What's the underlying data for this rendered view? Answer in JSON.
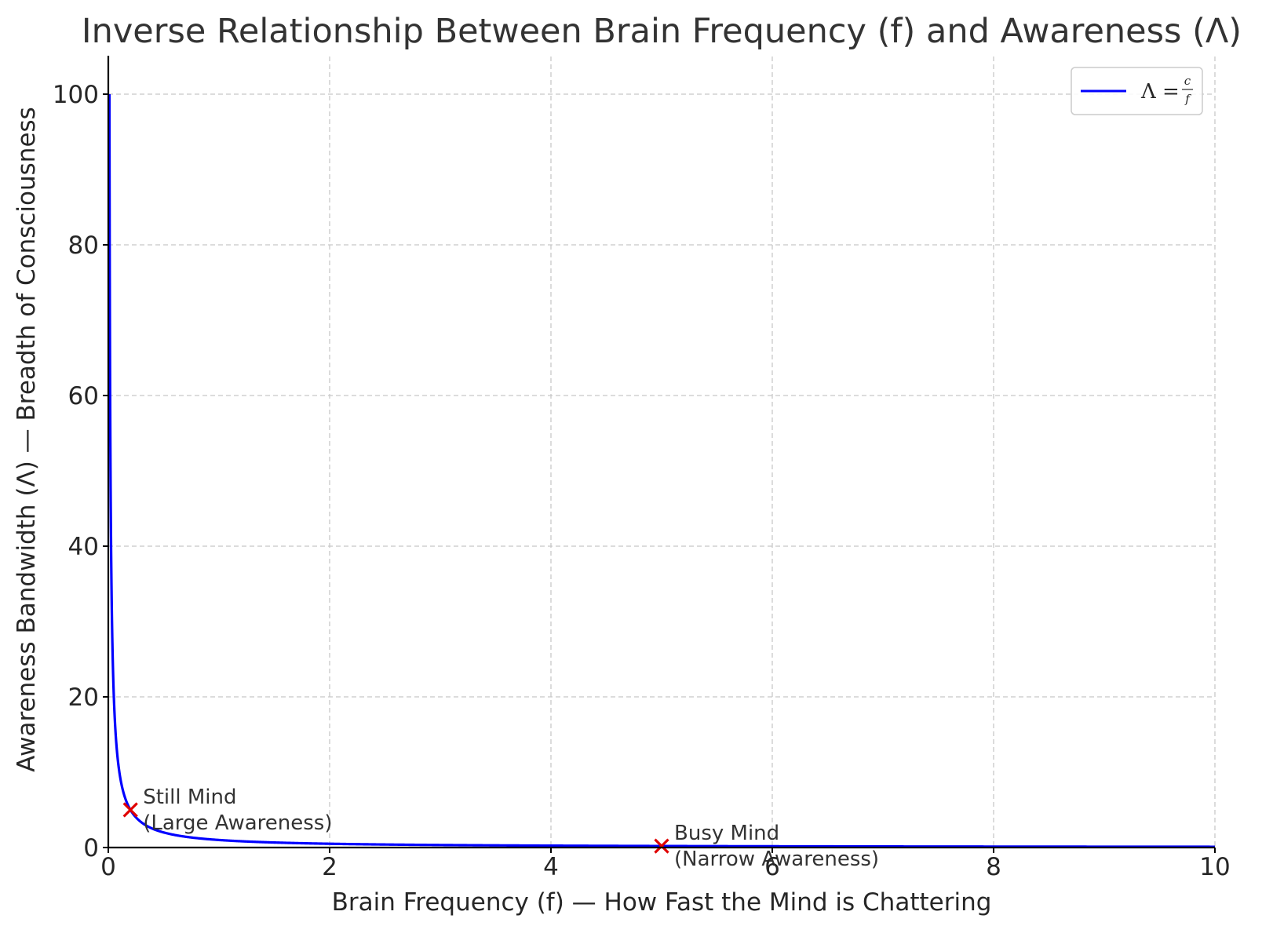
{
  "chart_data": {
    "type": "line",
    "title": "Inverse Relationship Between Brain Frequency (f) and Awareness (Λ)",
    "xlabel": "Brain Frequency (f) — How Fast the Mind is Chattering",
    "ylabel": "Awareness Bandwidth (Λ) — Breadth of Consciousness",
    "xlim": [
      0,
      10
    ],
    "ylim": [
      0,
      105
    ],
    "xticks": [
      0,
      2,
      4,
      6,
      8,
      10
    ],
    "yticks": [
      0,
      20,
      40,
      60,
      80,
      100
    ],
    "grid": true,
    "legend_position": "top-right",
    "series": [
      {
        "name": "Λ = c/f",
        "legend": {
          "prefix": "Λ = ",
          "numerator": "c",
          "denominator": "f"
        },
        "color": "#0000ff",
        "function": "c/f",
        "c": 1,
        "x_start": 0.01,
        "x_end": 10
      }
    ],
    "points": [
      {
        "x": 0.2,
        "y": 5,
        "marker": "x",
        "color": "#e00000",
        "label_lines": [
          "Still Mind",
          "(Large Awareness)"
        ]
      },
      {
        "x": 5,
        "y": 0.2,
        "marker": "x",
        "color": "#e00000",
        "label_lines": [
          "Busy Mind",
          "(Narrow Awareness)"
        ]
      }
    ]
  }
}
